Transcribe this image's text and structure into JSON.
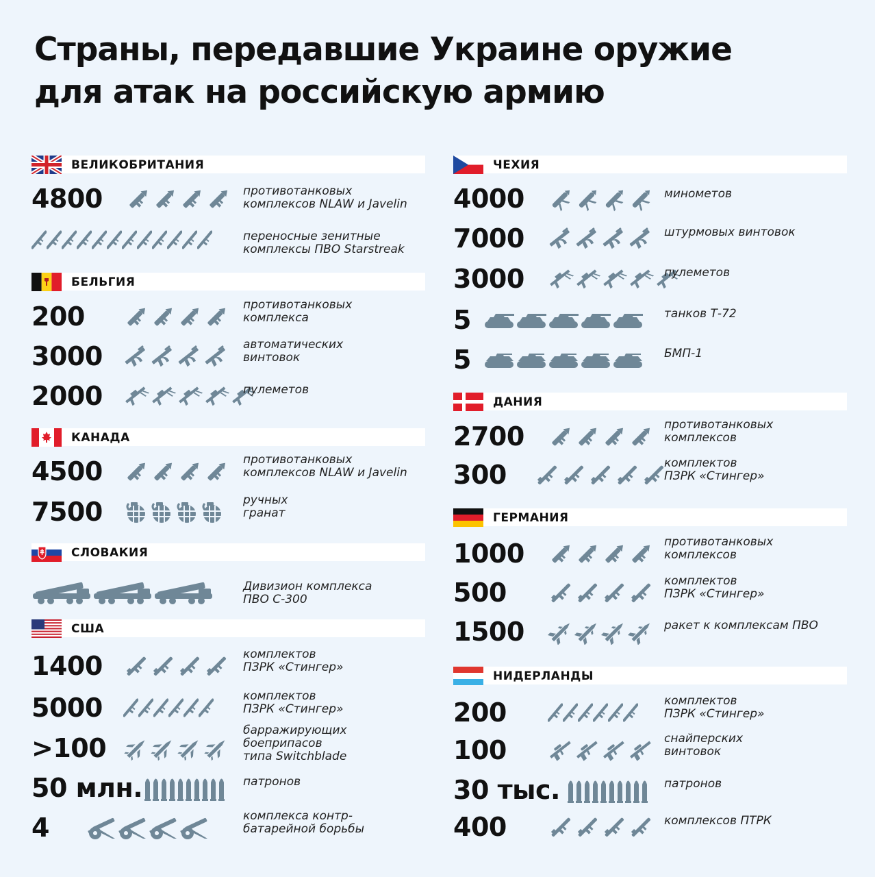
{
  "title": {
    "line1": "Страны, передавшие Украине оружие",
    "line2": "для атак на российскую армию"
  },
  "colors": {
    "icon": "#6f8797",
    "background": "#eef5fc",
    "header": "#ffffff",
    "text": "#111111"
  },
  "left": [
    {
      "country": "ВЕЛИКОБРИТАНИЯ",
      "flag": "uk",
      "items": [
        {
          "number": "4800",
          "icon": "antitank-launcher-icon",
          "count": 4,
          "desc": [
            "противотанковых",
            "комплексов NLAW и Javelin"
          ]
        },
        {
          "number": "",
          "icon": "manpads-icon",
          "count": 12,
          "desc": [
            "переносные зенитные",
            "комплексы ПВО Starstreak"
          ]
        }
      ]
    },
    {
      "country": "БЕЛЬГИЯ",
      "flag": "belgium",
      "items": [
        {
          "number": "200",
          "icon": "antitank-launcher-icon",
          "count": 4,
          "desc": [
            "противотанковых",
            "комплекса"
          ]
        },
        {
          "number": "3000",
          "icon": "assault-rifle-icon",
          "count": 4,
          "desc": [
            "автоматических",
            "винтовок"
          ]
        },
        {
          "number": "2000",
          "icon": "machine-gun-icon",
          "count": 5,
          "desc": [
            "пулеметов"
          ]
        }
      ]
    },
    {
      "country": "КАНАДА",
      "flag": "canada",
      "items": [
        {
          "number": "4500",
          "icon": "antitank-launcher-icon",
          "count": 4,
          "desc": [
            "противотанковых",
            "комплексов NLAW и Javelin"
          ]
        },
        {
          "number": "7500",
          "icon": "grenade-icon",
          "count": 4,
          "desc": [
            "ручных",
            "гранат"
          ]
        }
      ]
    },
    {
      "country": "СЛОВАКИЯ",
      "flag": "slovakia",
      "items": [
        {
          "number": "",
          "icon": "s300-launcher-icon",
          "count": 3,
          "desc": [
            "Дивизион комплекса",
            "ПВО С-300"
          ]
        }
      ]
    },
    {
      "country": "США",
      "flag": "usa",
      "items": [
        {
          "number": "1400",
          "icon": "stinger-icon",
          "count": 4,
          "desc": [
            "комплектов",
            "ПЗРК «Стингер»"
          ]
        },
        {
          "number": "5000",
          "icon": "manpads-icon",
          "count": 6,
          "desc": [
            "комплектов",
            "ПЗРК «Стингер»"
          ]
        },
        {
          "number": ">100",
          "icon": "switchblade-icon",
          "count": 4,
          "desc": [
            "барражирующих",
            "боеприпасов",
            "типа Switchblade"
          ]
        },
        {
          "number": "50 млн.",
          "icon": "cartridge-icon",
          "count": 10,
          "desc": [
            "патронов"
          ]
        },
        {
          "number": "4",
          "icon": "howitzer-icon",
          "count": 4,
          "desc": [
            "комплекса контр-",
            "батарейной борьбы"
          ]
        }
      ]
    }
  ],
  "right": [
    {
      "country": "ЧЕХИЯ",
      "flag": "czech",
      "items": [
        {
          "number": "4000",
          "icon": "mortar-icon",
          "count": 4,
          "desc": [
            "минометов"
          ]
        },
        {
          "number": "7000",
          "icon": "assault-rifle-icon",
          "count": 4,
          "desc": [
            "штурмовых винтовок"
          ]
        },
        {
          "number": "3000",
          "icon": "machine-gun-icon",
          "count": 5,
          "desc": [
            "пулеметов"
          ]
        },
        {
          "number": "5",
          "icon": "tank-icon",
          "count": 5,
          "desc": [
            "танков Т-72"
          ]
        },
        {
          "number": "5",
          "icon": "ifv-icon",
          "count": 5,
          "desc": [
            "БМП-1"
          ]
        }
      ]
    },
    {
      "country": "ДАНИЯ",
      "flag": "denmark",
      "items": [
        {
          "number": "2700",
          "icon": "antitank-launcher-icon",
          "count": 4,
          "desc": [
            "противотанковых",
            "комплексов"
          ]
        },
        {
          "number": "300",
          "icon": "stinger-icon",
          "count": 5,
          "desc": [
            "комплектов",
            "ПЗРК «Стингер»"
          ]
        }
      ]
    },
    {
      "country": "ГЕРМАНИЯ",
      "flag": "germany",
      "items": [
        {
          "number": "1000",
          "icon": "antitank-launcher-icon",
          "count": 4,
          "desc": [
            "противотанковых",
            "комплексов"
          ]
        },
        {
          "number": "500",
          "icon": "stinger-icon",
          "count": 4,
          "desc": [
            "комплектов",
            "ПЗРК «Стингер»"
          ]
        },
        {
          "number": "1500",
          "icon": "missile-icon",
          "count": 4,
          "desc": [
            "ракет к комплексам ПВО"
          ]
        }
      ]
    },
    {
      "country": "НИДЕРЛАНДЫ",
      "flag": "netherlands",
      "items": [
        {
          "number": "200",
          "icon": "manpads-icon",
          "count": 6,
          "desc": [
            "комплектов",
            "ПЗРК «Стингер»"
          ]
        },
        {
          "number": "100",
          "icon": "sniper-rifle-icon",
          "count": 4,
          "desc": [
            "снайперских",
            "винтовок"
          ]
        },
        {
          "number": "30 тыс.",
          "icon": "cartridge-icon",
          "count": 10,
          "desc": [
            "патронов"
          ]
        },
        {
          "number": "400",
          "icon": "stinger-icon",
          "count": 4,
          "desc": [
            "комплексов ПТРК"
          ]
        }
      ]
    }
  ]
}
